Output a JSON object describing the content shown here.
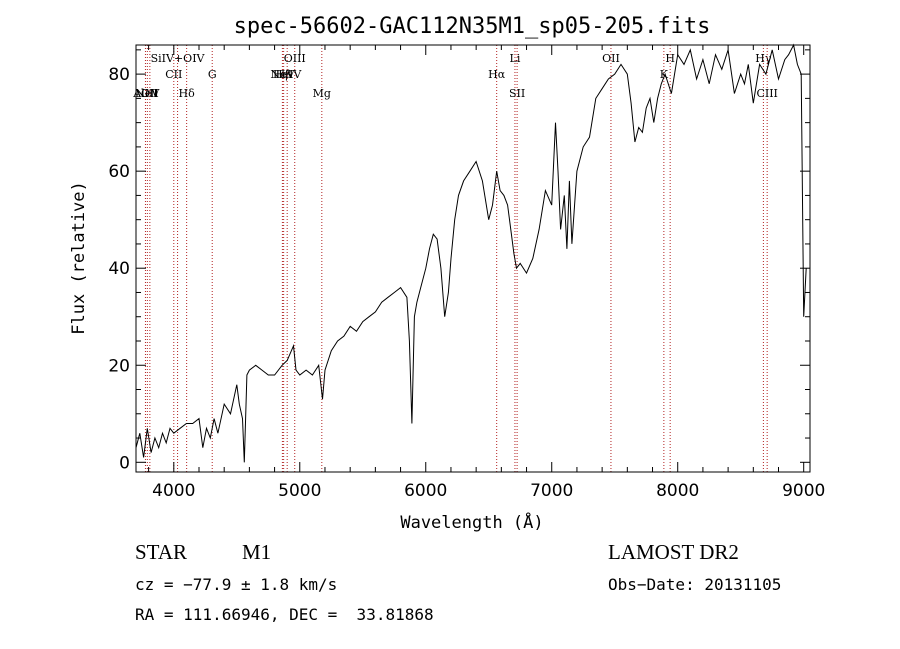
{
  "chart_data": {
    "type": "line",
    "title": "spec-56602-GAC112N35M1_sp05-205.fits",
    "xlabel": "Wavelength (Å)",
    "ylabel": "Flux (relative)",
    "xlim": [
      3700,
      9050
    ],
    "ylim": [
      -2,
      86
    ],
    "xticks": [
      "4000",
      "5000",
      "6000",
      "7000",
      "8000",
      "9000"
    ],
    "yticks": [
      "0",
      "20",
      "40",
      "60",
      "80"
    ],
    "line_color": "#000000",
    "marker_color": "#b22222",
    "series": [
      {
        "x": [
          3700,
          3730,
          3760,
          3790,
          3820,
          3850,
          3880,
          3910,
          3940,
          3970,
          4000,
          4050,
          4100,
          4150,
          4200,
          4230,
          4260,
          4290,
          4320,
          4350,
          4400,
          4450,
          4500,
          4520,
          4545,
          4560,
          4580,
          4600,
          4650,
          4700,
          4750,
          4800,
          4860,
          4900,
          4950,
          4970,
          5000,
          5050,
          5100,
          5150,
          5180,
          5200,
          5250,
          5300,
          5350,
          5400,
          5450,
          5500,
          5550,
          5600,
          5650,
          5700,
          5750,
          5800,
          5850,
          5870,
          5890,
          5910,
          5930,
          5960,
          6000,
          6030,
          6060,
          6090,
          6120,
          6150,
          6180,
          6200,
          6230,
          6260,
          6300,
          6350,
          6400,
          6450,
          6500,
          6530,
          6563,
          6590,
          6620,
          6650,
          6680,
          6700,
          6720,
          6750,
          6800,
          6850,
          6900,
          6950,
          7000,
          7030,
          7050,
          7070,
          7100,
          7120,
          7140,
          7160,
          7200,
          7250,
          7300,
          7350,
          7400,
          7450,
          7500,
          7550,
          7600,
          7630,
          7660,
          7690,
          7720,
          7750,
          7780,
          7810,
          7840,
          7870,
          7900,
          7950,
          8000,
          8050,
          8100,
          8150,
          8200,
          8250,
          8300,
          8350,
          8400,
          8450,
          8500,
          8530,
          8560,
          8600,
          8650,
          8700,
          8750,
          8800,
          8850,
          8880,
          8920,
          8950,
          8980,
          9000,
          9020
        ],
        "y": [
          3,
          6,
          1,
          7,
          2,
          5,
          3,
          6,
          4,
          7,
          6,
          7,
          8,
          8,
          9,
          3,
          7,
          5,
          9,
          6,
          12,
          10,
          16,
          12,
          9,
          0,
          18,
          19,
          20,
          19,
          18,
          18,
          20,
          21,
          24,
          19,
          18,
          19,
          18,
          20,
          13,
          19,
          23,
          25,
          26,
          28,
          27,
          29,
          30,
          31,
          33,
          34,
          35,
          36,
          34,
          25,
          8,
          30,
          33,
          36,
          40,
          44,
          47,
          46,
          40,
          30,
          35,
          42,
          50,
          55,
          58,
          60,
          62,
          58,
          50,
          53,
          60,
          56,
          55,
          53,
          47,
          43,
          40,
          41,
          39,
          42,
          48,
          56,
          53,
          70,
          60,
          48,
          55,
          44,
          58,
          45,
          60,
          65,
          67,
          75,
          77,
          79,
          80,
          82,
          80,
          74,
          66,
          69,
          68,
          73,
          75,
          70,
          75,
          78,
          80,
          76,
          84,
          82,
          85,
          79,
          83,
          78,
          84,
          81,
          85,
          76,
          80,
          78,
          82,
          74,
          82,
          80,
          85,
          79,
          83,
          84,
          86,
          82,
          80,
          30,
          40
        ]
      }
    ],
    "line_markers": [
      {
        "label": "AlIII",
        "wl": 3775,
        "pos": "mid"
      },
      {
        "label": "NeV",
        "wl": 3790,
        "pos": "mid"
      },
      {
        "label": "OII",
        "wl": 3810,
        "pos": "mid"
      },
      {
        "label": "SiIV+OIV",
        "wl": 4030,
        "pos": "top"
      },
      {
        "label": "CII",
        "wl": 4000,
        "pos": "high"
      },
      {
        "label": "Hδ",
        "wl": 4102,
        "pos": "mid"
      },
      {
        "label": "G",
        "wl": 4305,
        "pos": "high"
      },
      {
        "label": "OIII",
        "wl": 4960,
        "pos": "top"
      },
      {
        "label": "NeV",
        "wl": 4862,
        "pos": "high"
      },
      {
        "label": "Hβ",
        "wl": 4872,
        "pos": "high"
      },
      {
        "label": "HeIV",
        "wl": 4900,
        "pos": "high"
      },
      {
        "label": "Mg",
        "wl": 5175,
        "pos": "mid"
      },
      {
        "label": "Hα",
        "wl": 6563,
        "pos": "high"
      },
      {
        "label": "Li",
        "wl": 6708,
        "pos": "top"
      },
      {
        "label": "SII",
        "wl": 6725,
        "pos": "mid"
      },
      {
        "label": "OII",
        "wl": 7470,
        "pos": "top"
      },
      {
        "label": "H",
        "wl": 7940,
        "pos": "top"
      },
      {
        "label": "K",
        "wl": 7890,
        "pos": "high"
      },
      {
        "label": "Hγ",
        "wl": 8680,
        "pos": "top"
      },
      {
        "label": "CIII",
        "wl": 8710,
        "pos": "mid"
      }
    ]
  },
  "info": {
    "object_class": "STAR",
    "subclass": "M1",
    "cz": "cz = −77.9 ± 1.8 km/s",
    "coords": "RA = 111.66946, DEC =  33.81868",
    "survey": "LAMOST DR2",
    "obs_date": "Obs−Date: 20131105"
  }
}
